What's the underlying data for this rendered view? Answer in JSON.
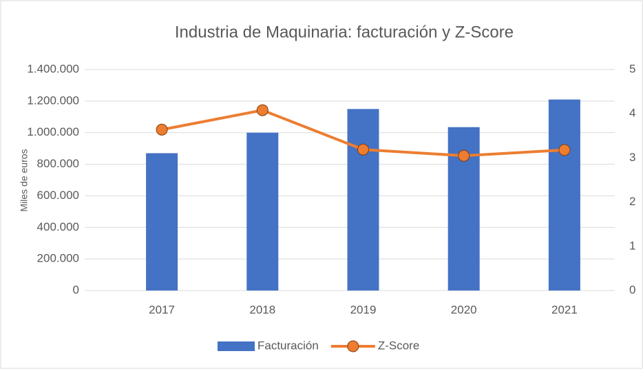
{
  "chart_data": {
    "type": "bar_line",
    "title": "Industria de Maquinaria: facturación y Z-Score",
    "ylabel": "Miles de euros",
    "categories": [
      "2017",
      "2018",
      "2019",
      "2020",
      "2021"
    ],
    "series": [
      {
        "name": "Facturación",
        "type": "bar",
        "color": "#4472c4",
        "values": [
          870000,
          1000000,
          1150000,
          1035000,
          1210000
        ]
      },
      {
        "name": "Z-Score",
        "type": "line",
        "axis": "y2",
        "color": "#ed7d31",
        "values": [
          3.64,
          4.08,
          3.19,
          3.05,
          3.18
        ]
      }
    ],
    "ylim": [
      0,
      1400000
    ],
    "yticks": [
      0,
      {
        "value": 200000,
        "label": "200.000"
      },
      {
        "value": 400000,
        "label": "400.000"
      },
      {
        "value": 600000,
        "label": "600.000"
      },
      {
        "value": 800000,
        "label": "800.000"
      },
      {
        "value": 1000000,
        "label": "1.000.000"
      },
      {
        "value": 1200000,
        "label": "1.200.000"
      },
      {
        "value": 1400000,
        "label": "1.400.000"
      }
    ],
    "y2lim": [
      0,
      5
    ],
    "y2ticks": [
      0,
      1,
      2,
      3,
      4,
      5
    ],
    "grid": true,
    "legend": "bottom"
  }
}
